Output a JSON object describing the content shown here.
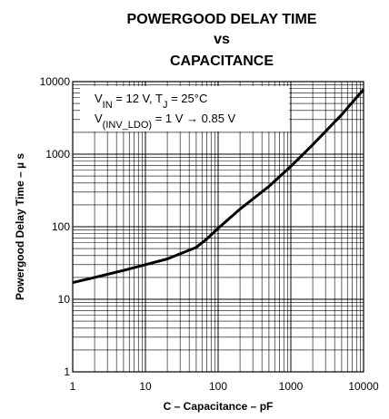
{
  "chart_data": {
    "type": "line",
    "title": [
      "POWERGOOD DELAY TIME",
      "vs",
      "CAPACITANCE"
    ],
    "annotations": [
      [
        "V",
        "IN",
        " = 12 V, T",
        "J",
        " = 25°C"
      ],
      [
        "V",
        "(INV_LDO)",
        " = 1 V → 0.85 V"
      ]
    ],
    "x_label": "C – Capacitance – pF",
    "y_label": "Powergood Delay Time – µ s",
    "x": [
      1,
      2,
      5,
      10,
      20,
      50,
      70,
      100,
      200,
      500,
      1000,
      2000,
      5000,
      10000
    ],
    "series": [
      {
        "color": "#000000",
        "values": [
          17,
          20,
          25,
          30,
          36,
          52,
          68,
          95,
          175,
          360,
          680,
          1350,
          3500,
          7800
        ]
      }
    ],
    "log_x": true,
    "log_y": true,
    "grid": true,
    "xlim": [
      1,
      10000
    ],
    "ylim": [
      1,
      10000
    ],
    "xticks": [
      1,
      10,
      100,
      1000,
      10000
    ],
    "yticks": [
      1,
      10,
      100,
      1000,
      10000
    ]
  }
}
